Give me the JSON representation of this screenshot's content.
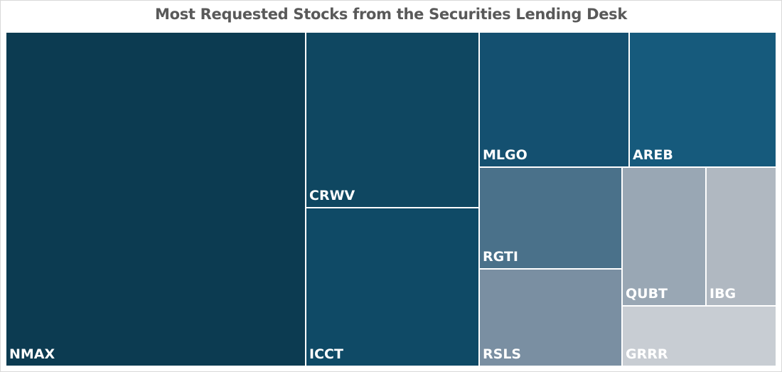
{
  "chart_data": {
    "type": "treemap",
    "title": "Most Requested Stocks from the Securities Lending Desk",
    "items": [
      {
        "label": "NMAX",
        "value": 22,
        "color": "#0c3b51"
      },
      {
        "label": "CRWV",
        "value": 6.5,
        "color": "#0f4761"
      },
      {
        "label": "ICCT",
        "value": 5.5,
        "color": "#0f4a66"
      },
      {
        "label": "MLGO",
        "value": 4.3,
        "color": "#145070"
      },
      {
        "label": "AREB",
        "value": 4.2,
        "color": "#165a7c"
      },
      {
        "label": "RGTI",
        "value": 2.0,
        "color": "#4a718a"
      },
      {
        "label": "RSLS",
        "value": 2.0,
        "color": "#7a8fa2"
      },
      {
        "label": "QUBT",
        "value": 1.9,
        "color": "#99a7b4"
      },
      {
        "label": "IBG",
        "value": 1.6,
        "color": "#b0b8c1"
      },
      {
        "label": "GRRR",
        "value": 1.6,
        "color": "#c8cdd3"
      }
    ]
  }
}
